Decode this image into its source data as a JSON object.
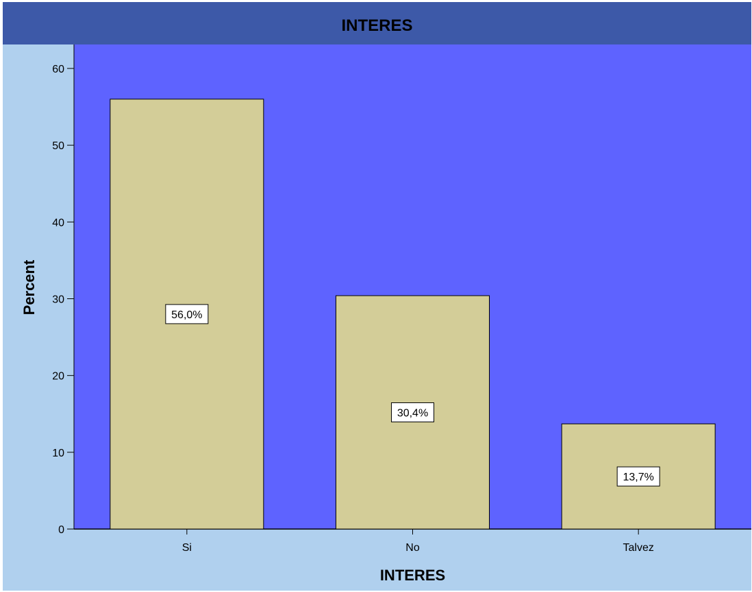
{
  "chart_data": {
    "type": "bar",
    "title": "INTERES",
    "xlabel": "INTERES",
    "ylabel": "Percent",
    "categories": [
      "Si",
      "No",
      "Talvez"
    ],
    "values": [
      56.0,
      30.4,
      13.7
    ],
    "data_labels": [
      "56,0%",
      "30,4%",
      "13,7%"
    ],
    "ylim": [
      0,
      60
    ],
    "yticks": [
      0,
      10,
      20,
      30,
      40,
      50,
      60
    ],
    "grid": false,
    "colors": {
      "plot_background": "#5e63ff",
      "bar_fill": "#d3cd98",
      "frame_background": "#b0d0ee",
      "title_bar": "#3d59a8"
    }
  }
}
